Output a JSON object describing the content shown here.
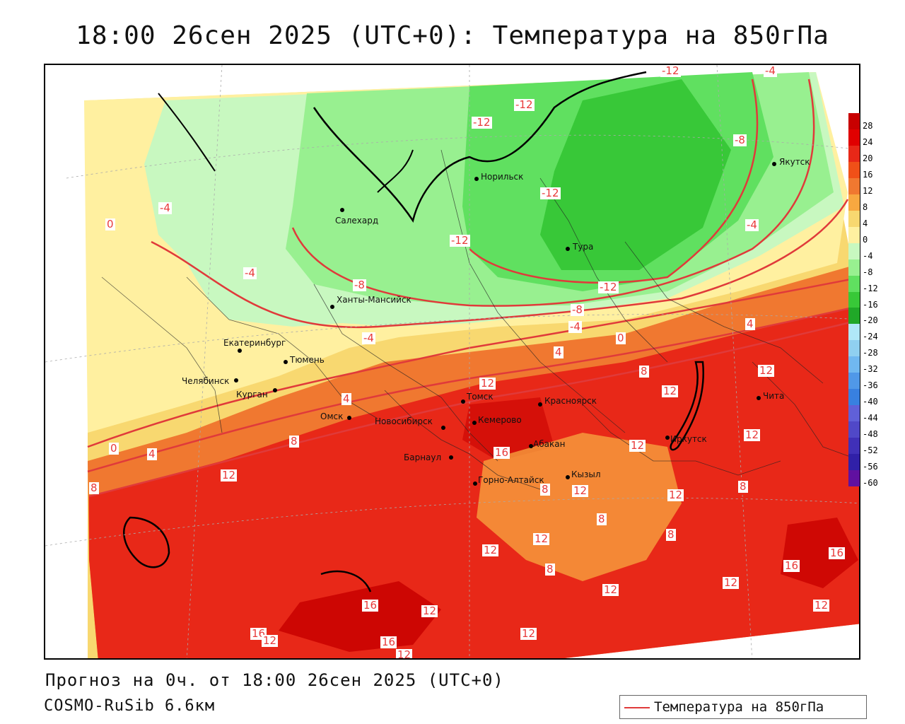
{
  "title": "18:00 26сен 2025 (UTC+0): Температура на 850гПа",
  "footer": {
    "forecast": "Прогноз на 0ч. от 18:00 26сен 2025 (UTC+0)",
    "model": "COSMO-RuSib 6.6км"
  },
  "legend": {
    "label": "Температура на 850гПа",
    "line_color": "#e03a3a"
  },
  "colorbar": {
    "levels": [
      "28",
      "24",
      "20",
      "16",
      "12",
      "8",
      "4",
      "0",
      "-4",
      "-8",
      "-12",
      "-16",
      "-20",
      "-24",
      "-28",
      "-32",
      "-36",
      "-40",
      "-44",
      "-48",
      "-52",
      "-56",
      "-60"
    ],
    "colors": [
      "#c80000",
      "#e00000",
      "#e82818",
      "#f05018",
      "#f07830",
      "#f8a840",
      "#f8d870",
      "#fff0a0",
      "#c8f8c0",
      "#98f090",
      "#60e060",
      "#38c838",
      "#20a828",
      "#b0e8f8",
      "#90d0f0",
      "#70b8f0",
      "#5098e8",
      "#3880e0",
      "#6060d8",
      "#5048c8",
      "#4030b8",
      "#3020a8",
      "#6010a0"
    ]
  },
  "cities": [
    {
      "name": "Салехард"
    },
    {
      "name": "Норильск"
    },
    {
      "name": "Тура"
    },
    {
      "name": "Якутск"
    },
    {
      "name": "Ханты-Мансийск"
    },
    {
      "name": "Екатеринбург"
    },
    {
      "name": "Тюмень"
    },
    {
      "name": "Челябинск"
    },
    {
      "name": "Курган"
    },
    {
      "name": "Омск"
    },
    {
      "name": "Новосибирск"
    },
    {
      "name": "Томск"
    },
    {
      "name": "Кемерово"
    },
    {
      "name": "Красноярск"
    },
    {
      "name": "Барнаул"
    },
    {
      "name": "Абакан"
    },
    {
      "name": "Горно-Алтайск"
    },
    {
      "name": "Кызыл"
    },
    {
      "name": "Иркутск"
    },
    {
      "name": "Чита"
    }
  ],
  "isotherm_labels": [
    "-12",
    "-12",
    "-12",
    "-12",
    "-12",
    "-12",
    "-8",
    "-4",
    "-4",
    "-4",
    "-4",
    "-8",
    "-8",
    "-4",
    "-4",
    "0",
    "0",
    "4",
    "4",
    "0",
    "4",
    "8",
    "12",
    "12",
    "12",
    "8",
    "16",
    "12",
    "12",
    "8",
    "8",
    "12",
    "12",
    "8",
    "12",
    "8",
    "12",
    "16",
    "16",
    "12",
    "16",
    "12",
    "16",
    "12",
    "12",
    "12",
    "12",
    "16",
    "12",
    "12",
    "8",
    "8",
    "4"
  ]
}
